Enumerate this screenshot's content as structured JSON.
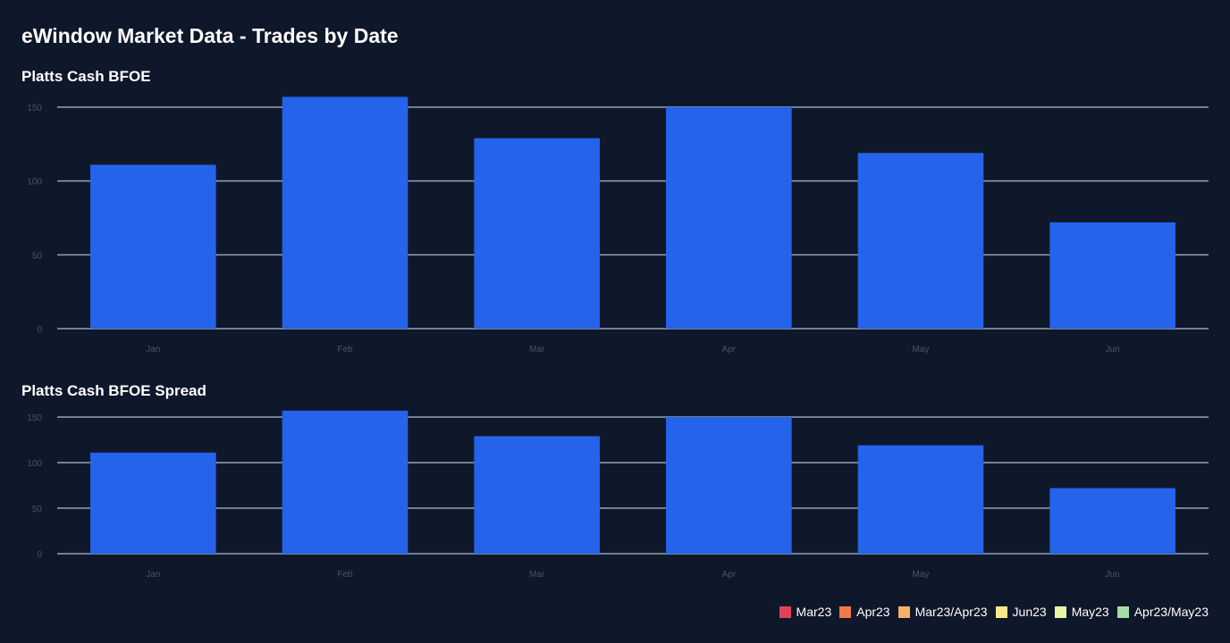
{
  "page": {
    "title": "eWindow Market Data - Trades by Date"
  },
  "colors": {
    "bar": "#2563eb",
    "grid": "#94a3b8",
    "tick": "#475569",
    "background": "#0f172a"
  },
  "chart_data": [
    {
      "type": "bar",
      "title": "Platts Cash BFOE",
      "categories": [
        "Jan",
        "Feb",
        "Mar",
        "Apr",
        "May",
        "Jun"
      ],
      "values": [
        111,
        157,
        129,
        150,
        119,
        72
      ],
      "yticks": [
        0,
        50,
        100,
        150
      ],
      "ylim": [
        0,
        150
      ],
      "grid": true
    },
    {
      "type": "bar",
      "title": "Platts Cash BFOE Spread",
      "categories": [
        "Jan",
        "Feb",
        "Mar",
        "Apr",
        "May",
        "Jun"
      ],
      "values": [
        111,
        157,
        129,
        150,
        119,
        72
      ],
      "yticks": [
        0,
        50,
        100,
        150
      ],
      "ylim": [
        0,
        150
      ],
      "grid": true
    }
  ],
  "legend": {
    "placement": "bottom-right",
    "items": [
      {
        "label": "Mar23",
        "color": "#e0435a"
      },
      {
        "label": "Apr23",
        "color": "#f07a4a"
      },
      {
        "label": "Mar23/Apr23",
        "color": "#f5b06a"
      },
      {
        "label": "Jun23",
        "color": "#fde68a"
      },
      {
        "label": "May23",
        "color": "#e8f5a8"
      },
      {
        "label": "Apr23/May23",
        "color": "#a7dba8"
      }
    ]
  }
}
